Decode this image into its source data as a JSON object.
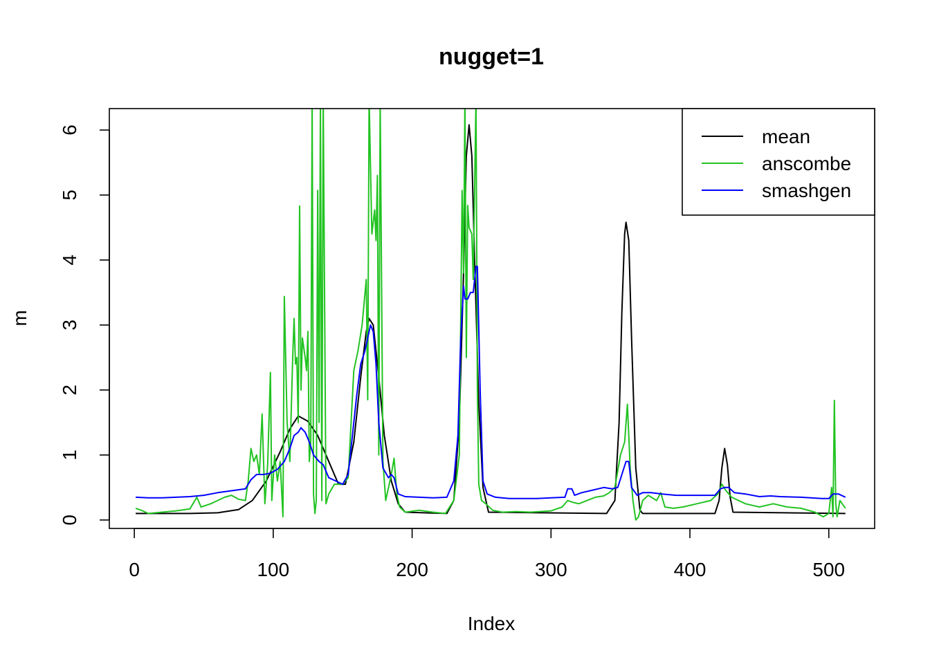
{
  "chart_data": {
    "type": "line",
    "title": "nugget=1",
    "xlabel": "Index",
    "ylabel": "m",
    "xlim": [
      -18,
      533
    ],
    "ylim": [
      -0.13,
      6.33
    ],
    "xticks": [
      0,
      100,
      200,
      300,
      400,
      500
    ],
    "yticks": [
      0,
      1,
      2,
      3,
      4,
      5,
      6
    ],
    "grid": false,
    "legend": {
      "position": "top-right",
      "entries": [
        "mean",
        "anscombe",
        "smashgen"
      ]
    },
    "series": [
      {
        "name": "mean",
        "color": "#000000",
        "points": [
          [
            1,
            0.1
          ],
          [
            40,
            0.1
          ],
          [
            60,
            0.11
          ],
          [
            75,
            0.16
          ],
          [
            85,
            0.3
          ],
          [
            95,
            0.6
          ],
          [
            105,
            1.05
          ],
          [
            112,
            1.4
          ],
          [
            118,
            1.6
          ],
          [
            125,
            1.52
          ],
          [
            132,
            1.3
          ],
          [
            140,
            0.9
          ],
          [
            147,
            0.55
          ],
          [
            152,
            0.55
          ],
          [
            158,
            1.2
          ],
          [
            163,
            2.2
          ],
          [
            167,
            2.9
          ],
          [
            169,
            3.1
          ],
          [
            172,
            3.0
          ],
          [
            176,
            2.2
          ],
          [
            180,
            1.3
          ],
          [
            185,
            0.6
          ],
          [
            190,
            0.25
          ],
          [
            195,
            0.12
          ],
          [
            225,
            0.1
          ],
          [
            230,
            0.3
          ],
          [
            234,
            1.5
          ],
          [
            237,
            3.8
          ],
          [
            239,
            5.6
          ],
          [
            241,
            6.08
          ],
          [
            243,
            5.6
          ],
          [
            245,
            4.0
          ],
          [
            248,
            1.8
          ],
          [
            251,
            0.5
          ],
          [
            255,
            0.12
          ],
          [
            340,
            0.1
          ],
          [
            346,
            0.3
          ],
          [
            349,
            1.5
          ],
          [
            351,
            3.2
          ],
          [
            353,
            4.4
          ],
          [
            354,
            4.58
          ],
          [
            356,
            4.3
          ],
          [
            358,
            2.8
          ],
          [
            361,
            0.8
          ],
          [
            364,
            0.15
          ],
          [
            366,
            0.1
          ],
          [
            418,
            0.1
          ],
          [
            421,
            0.3
          ],
          [
            423,
            0.8
          ],
          [
            425,
            1.1
          ],
          [
            427,
            0.85
          ],
          [
            429,
            0.35
          ],
          [
            431,
            0.12
          ],
          [
            512,
            0.1
          ]
        ]
      },
      {
        "name": "anscombe",
        "color": "#22c322",
        "points": [
          [
            1,
            0.18
          ],
          [
            5,
            0.15
          ],
          [
            10,
            0.1
          ],
          [
            20,
            0.12
          ],
          [
            30,
            0.14
          ],
          [
            40,
            0.17
          ],
          [
            45,
            0.35
          ],
          [
            48,
            0.2
          ],
          [
            55,
            0.25
          ],
          [
            60,
            0.3
          ],
          [
            65,
            0.35
          ],
          [
            70,
            0.38
          ],
          [
            75,
            0.32
          ],
          [
            80,
            0.3
          ],
          [
            82,
            0.6
          ],
          [
            84,
            1.1
          ],
          [
            86,
            0.9
          ],
          [
            88,
            1.0
          ],
          [
            90,
            0.7
          ],
          [
            92,
            1.63
          ],
          [
            94,
            0.25
          ],
          [
            96,
            0.85
          ],
          [
            98,
            2.27
          ],
          [
            99,
            0.3
          ],
          [
            101,
            1.0
          ],
          [
            103,
            0.6
          ],
          [
            105,
            0.9
          ],
          [
            107,
            0.05
          ],
          [
            108,
            3.44
          ],
          [
            110,
            1.5
          ],
          [
            112,
            0.9
          ],
          [
            114,
            2.5
          ],
          [
            115,
            3.1
          ],
          [
            116,
            2.4
          ],
          [
            117,
            2.5
          ],
          [
            118,
            1.5
          ],
          [
            119,
            4.83
          ],
          [
            120,
            2.0
          ],
          [
            121,
            2.8
          ],
          [
            123,
            2.5
          ],
          [
            124,
            2.3
          ],
          [
            125,
            2.9
          ],
          [
            126,
            0.9
          ],
          [
            127,
            1.2
          ],
          [
            128,
            6.5
          ],
          [
            129,
            0.4
          ],
          [
            130,
            0.1
          ],
          [
            131,
            0.3
          ],
          [
            132,
            5.07
          ],
          [
            133,
            1.5
          ],
          [
            134,
            6.5
          ],
          [
            135,
            0.3
          ],
          [
            136,
            6.5
          ],
          [
            138,
            0.25
          ],
          [
            140,
            0.4
          ],
          [
            144,
            0.55
          ],
          [
            150,
            0.55
          ],
          [
            154,
            0.65
          ],
          [
            158,
            2.3
          ],
          [
            161,
            2.6
          ],
          [
            164,
            3.0
          ],
          [
            167,
            3.7
          ],
          [
            168,
            1.85
          ],
          [
            169,
            6.5
          ],
          [
            171,
            4.4
          ],
          [
            173,
            4.77
          ],
          [
            174,
            4.3
          ],
          [
            175,
            5.3
          ],
          [
            176,
            1.0
          ],
          [
            177,
            6.5
          ],
          [
            179,
            0.9
          ],
          [
            181,
            0.3
          ],
          [
            183,
            0.5
          ],
          [
            185,
            0.7
          ],
          [
            187,
            0.95
          ],
          [
            189,
            0.4
          ],
          [
            191,
            0.2
          ],
          [
            195,
            0.12
          ],
          [
            205,
            0.15
          ],
          [
            215,
            0.12
          ],
          [
            224,
            0.1
          ],
          [
            230,
            0.3
          ],
          [
            234,
            1.0
          ],
          [
            236,
            5.07
          ],
          [
            237,
            3.8
          ],
          [
            238,
            6.5
          ],
          [
            239,
            2.5
          ],
          [
            240,
            4.84
          ],
          [
            241,
            4.5
          ],
          [
            243,
            4.4
          ],
          [
            244,
            3.7
          ],
          [
            246,
            6.5
          ],
          [
            247,
            2.0
          ],
          [
            248,
            0.55
          ],
          [
            250,
            0.3
          ],
          [
            253,
            0.25
          ],
          [
            258,
            0.15
          ],
          [
            265,
            0.12
          ],
          [
            275,
            0.13
          ],
          [
            285,
            0.12
          ],
          [
            300,
            0.14
          ],
          [
            308,
            0.2
          ],
          [
            312,
            0.3
          ],
          [
            316,
            0.27
          ],
          [
            320,
            0.25
          ],
          [
            326,
            0.3
          ],
          [
            332,
            0.35
          ],
          [
            338,
            0.37
          ],
          [
            342,
            0.42
          ],
          [
            346,
            0.5
          ],
          [
            350,
            1.0
          ],
          [
            353,
            1.2
          ],
          [
            355,
            1.78
          ],
          [
            357,
            0.8
          ],
          [
            359,
            0.3
          ],
          [
            361,
            0.0
          ],
          [
            363,
            0.05
          ],
          [
            366,
            0.3
          ],
          [
            370,
            0.38
          ],
          [
            376,
            0.3
          ],
          [
            379,
            0.42
          ],
          [
            382,
            0.2
          ],
          [
            388,
            0.18
          ],
          [
            395,
            0.2
          ],
          [
            405,
            0.25
          ],
          [
            415,
            0.3
          ],
          [
            420,
            0.4
          ],
          [
            423,
            0.55
          ],
          [
            426,
            0.45
          ],
          [
            430,
            0.35
          ],
          [
            440,
            0.25
          ],
          [
            450,
            0.2
          ],
          [
            460,
            0.25
          ],
          [
            470,
            0.2
          ],
          [
            480,
            0.18
          ],
          [
            490,
            0.12
          ],
          [
            496,
            0.05
          ],
          [
            500,
            0.1
          ],
          [
            502,
            0.5
          ],
          [
            503,
            0.05
          ],
          [
            504,
            1.84
          ],
          [
            505,
            0.25
          ],
          [
            506,
            0.05
          ],
          [
            508,
            0.3
          ],
          [
            512,
            0.18
          ]
        ]
      },
      {
        "name": "smashgen",
        "color": "#0000ff",
        "points": [
          [
            1,
            0.35
          ],
          [
            10,
            0.34
          ],
          [
            20,
            0.34
          ],
          [
            30,
            0.35
          ],
          [
            40,
            0.36
          ],
          [
            50,
            0.38
          ],
          [
            60,
            0.42
          ],
          [
            70,
            0.45
          ],
          [
            80,
            0.48
          ],
          [
            84,
            0.62
          ],
          [
            88,
            0.7
          ],
          [
            93,
            0.7
          ],
          [
            98,
            0.72
          ],
          [
            103,
            0.78
          ],
          [
            108,
            0.9
          ],
          [
            112,
            1.1
          ],
          [
            115,
            1.3
          ],
          [
            118,
            1.35
          ],
          [
            120,
            1.42
          ],
          [
            123,
            1.35
          ],
          [
            126,
            1.2
          ],
          [
            129,
            1.0
          ],
          [
            133,
            0.9
          ],
          [
            136,
            0.85
          ],
          [
            140,
            0.65
          ],
          [
            145,
            0.6
          ],
          [
            150,
            0.55
          ],
          [
            154,
            0.7
          ],
          [
            157,
            1.3
          ],
          [
            160,
            1.9
          ],
          [
            163,
            2.4
          ],
          [
            166,
            2.6
          ],
          [
            168,
            2.8
          ],
          [
            170,
            3.0
          ],
          [
            172,
            2.9
          ],
          [
            174,
            2.4
          ],
          [
            176,
            1.5
          ],
          [
            179,
            0.8
          ],
          [
            183,
            0.65
          ],
          [
            185,
            0.7
          ],
          [
            187,
            0.65
          ],
          [
            190,
            0.4
          ],
          [
            195,
            0.36
          ],
          [
            205,
            0.35
          ],
          [
            215,
            0.34
          ],
          [
            225,
            0.35
          ],
          [
            230,
            0.6
          ],
          [
            233,
            1.3
          ],
          [
            235,
            2.8
          ],
          [
            237,
            3.6
          ],
          [
            238,
            3.4
          ],
          [
            240,
            3.4
          ],
          [
            242,
            3.5
          ],
          [
            244,
            3.5
          ],
          [
            246,
            3.9
          ],
          [
            247,
            3.9
          ],
          [
            249,
            2.0
          ],
          [
            251,
            0.6
          ],
          [
            254,
            0.4
          ],
          [
            260,
            0.35
          ],
          [
            270,
            0.33
          ],
          [
            290,
            0.33
          ],
          [
            300,
            0.34
          ],
          [
            310,
            0.35
          ],
          [
            312,
            0.48
          ],
          [
            315,
            0.48
          ],
          [
            317,
            0.38
          ],
          [
            322,
            0.42
          ],
          [
            330,
            0.46
          ],
          [
            338,
            0.5
          ],
          [
            344,
            0.48
          ],
          [
            348,
            0.5
          ],
          [
            351,
            0.7
          ],
          [
            354,
            0.9
          ],
          [
            356,
            0.9
          ],
          [
            358,
            0.5
          ],
          [
            362,
            0.38
          ],
          [
            366,
            0.42
          ],
          [
            372,
            0.42
          ],
          [
            380,
            0.4
          ],
          [
            390,
            0.38
          ],
          [
            400,
            0.38
          ],
          [
            410,
            0.38
          ],
          [
            418,
            0.38
          ],
          [
            422,
            0.48
          ],
          [
            425,
            0.5
          ],
          [
            428,
            0.5
          ],
          [
            432,
            0.42
          ],
          [
            440,
            0.4
          ],
          [
            450,
            0.36
          ],
          [
            458,
            0.37
          ],
          [
            465,
            0.36
          ],
          [
            480,
            0.35
          ],
          [
            495,
            0.33
          ],
          [
            500,
            0.33
          ],
          [
            503,
            0.4
          ],
          [
            507,
            0.4
          ],
          [
            512,
            0.35
          ]
        ]
      }
    ]
  }
}
